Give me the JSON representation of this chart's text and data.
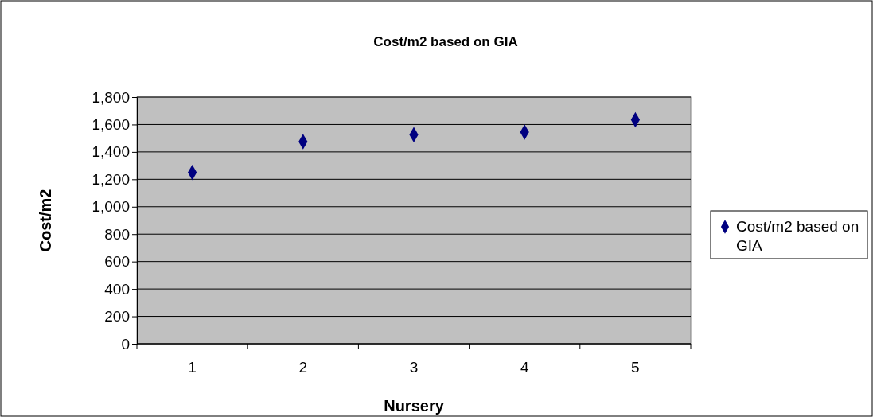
{
  "chart_data": {
    "type": "scatter",
    "title": "Cost/m2 based on GIA",
    "xlabel": "Nursery",
    "ylabel": "Cost/m2",
    "categories": [
      "1",
      "2",
      "3",
      "4",
      "5"
    ],
    "series": [
      {
        "name": "Cost/m2 based on GIA",
        "color": "#000080",
        "values": [
          1250,
          1475,
          1525,
          1545,
          1635
        ]
      }
    ],
    "ylim": [
      0,
      1800
    ],
    "yticks": [
      {
        "value": 0,
        "label": "0"
      },
      {
        "value": 200,
        "label": "200"
      },
      {
        "value": 400,
        "label": "400"
      },
      {
        "value": 600,
        "label": "600"
      },
      {
        "value": 800,
        "label": "800"
      },
      {
        "value": 1000,
        "label": "1,000"
      },
      {
        "value": 1200,
        "label": "1,200"
      },
      {
        "value": 1400,
        "label": "1,400"
      },
      {
        "value": 1600,
        "label": "1,600"
      },
      {
        "value": 1800,
        "label": "1,800"
      }
    ],
    "grid": "y",
    "legend": "right",
    "marker": "diamond"
  }
}
